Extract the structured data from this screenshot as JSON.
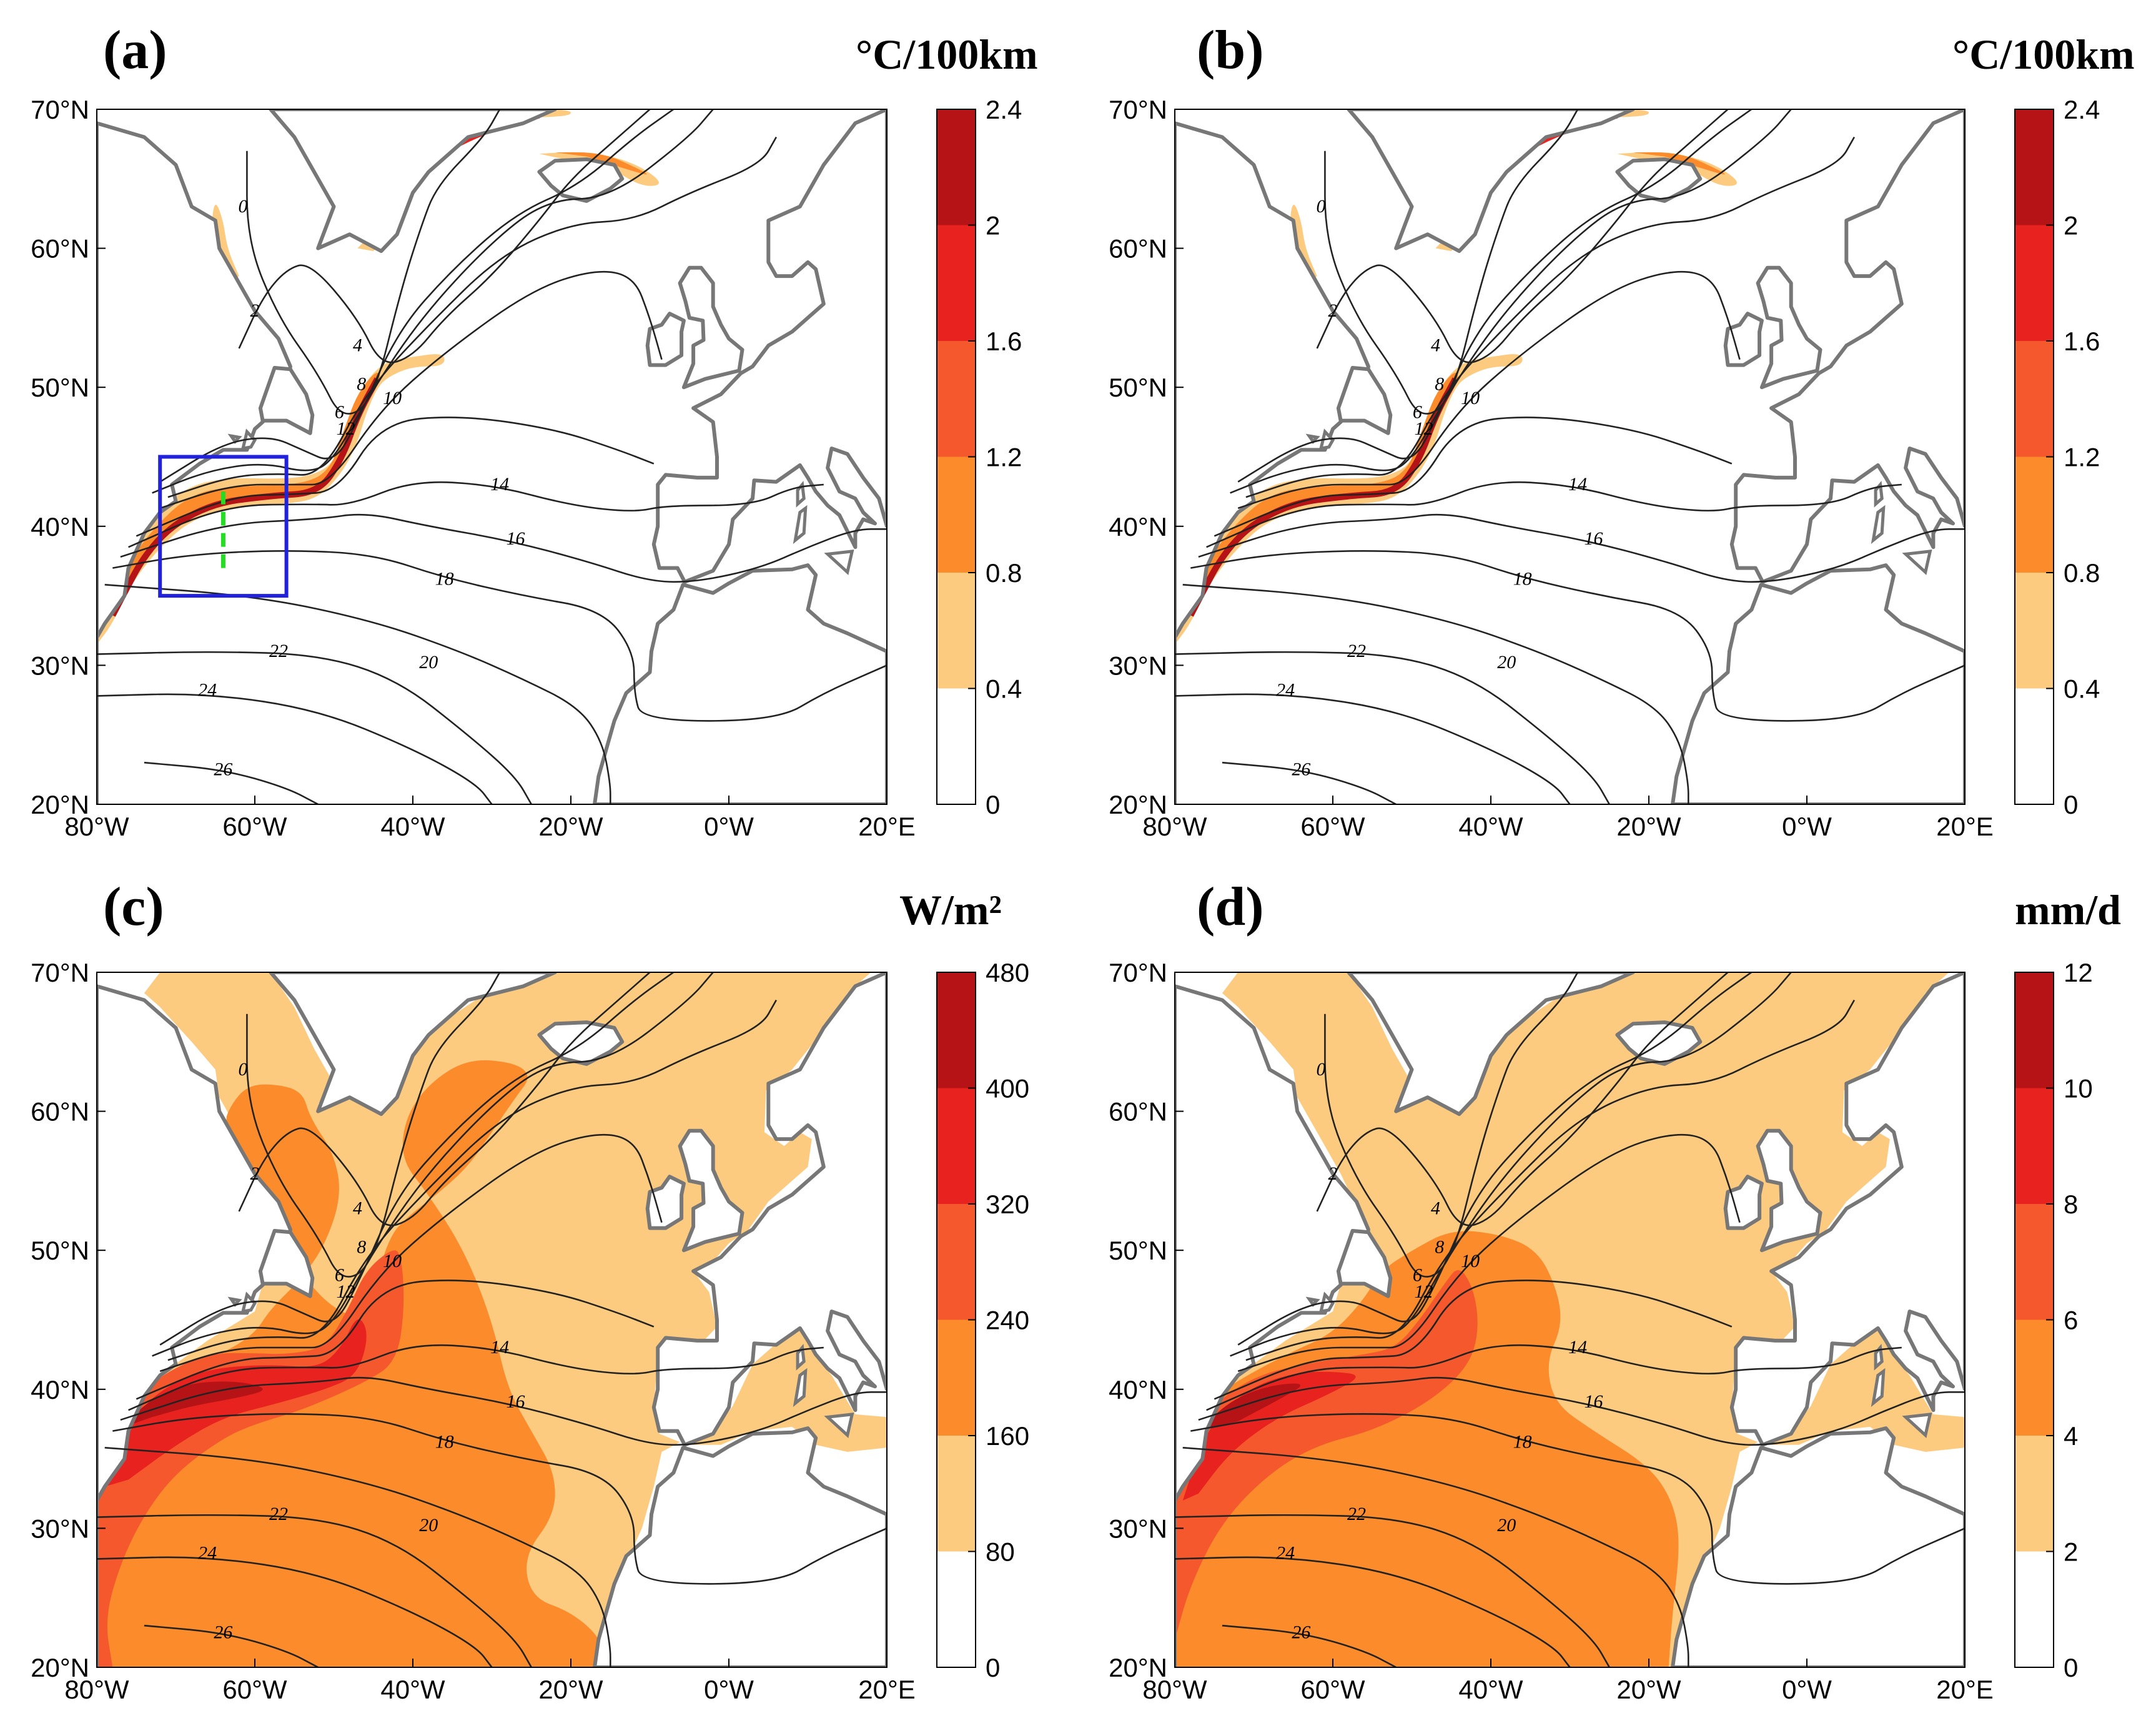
{
  "panels": [
    {
      "label": "(a)",
      "unit": "°C/100km",
      "colorbar": {
        "ticks": [
          "0",
          "0.4",
          "0.8",
          "1.2",
          "1.6",
          "2",
          "2.4"
        ],
        "colors": [
          "#ffffff",
          "#fdcb80",
          "#fb8b2b",
          "#f5582d",
          "#e8231f",
          "#b51316"
        ]
      },
      "field_type": "gradient",
      "contour_labels": [
        "0",
        "2",
        "4",
        "6",
        "8",
        "10",
        "12",
        "14",
        "16",
        "18",
        "20",
        "22",
        "24",
        "26"
      ],
      "region_box": {
        "lon": [
          -72,
          -56
        ],
        "lat": [
          35,
          45
        ],
        "color": "#2222dd"
      },
      "section_line": {
        "lon": -64,
        "lat": [
          37,
          42.5
        ],
        "color": "#22dd22"
      }
    },
    {
      "label": "(b)",
      "unit": "°C/100km",
      "colorbar": {
        "ticks": [
          "0",
          "0.4",
          "0.8",
          "1.2",
          "1.6",
          "2",
          "2.4"
        ],
        "colors": [
          "#ffffff",
          "#fdcb80",
          "#fb8b2b",
          "#f5582d",
          "#e8231f",
          "#b51316"
        ]
      },
      "field_type": "gradient",
      "contour_labels": [
        "0",
        "2",
        "4",
        "6",
        "8",
        "10",
        "12",
        "14",
        "16",
        "18",
        "20",
        "22",
        "24",
        "26"
      ]
    },
    {
      "label": "(c)",
      "unit": "W/m²",
      "colorbar": {
        "ticks": [
          "0",
          "80",
          "160",
          "240",
          "320",
          "400",
          "480"
        ],
        "colors": [
          "#ffffff",
          "#fdcb80",
          "#fb8b2b",
          "#f5582d",
          "#e8231f",
          "#b51316"
        ]
      },
      "field_type": "flux",
      "contour_labels": [
        "0",
        "2",
        "4",
        "6",
        "8",
        "10",
        "12",
        "14",
        "16",
        "18",
        "20",
        "22",
        "24",
        "26"
      ]
    },
    {
      "label": "(d)",
      "unit": "mm/d",
      "colorbar": {
        "ticks": [
          "0",
          "2",
          "4",
          "6",
          "8",
          "10",
          "12"
        ],
        "colors": [
          "#ffffff",
          "#fdcb80",
          "#fb8b2b",
          "#f5582d",
          "#e8231f",
          "#b51316"
        ]
      },
      "field_type": "evap",
      "contour_labels": [
        "0",
        "2",
        "4",
        "6",
        "8",
        "10",
        "12",
        "14",
        "16",
        "18",
        "20",
        "22",
        "24",
        "26"
      ]
    }
  ],
  "axes": {
    "lon_ticks": [
      "80°W",
      "60°W",
      "40°W",
      "20°W",
      "0°W",
      "20°E"
    ],
    "lat_ticks": [
      "20°N",
      "30°N",
      "40°N",
      "50°N",
      "60°N",
      "70°N"
    ],
    "lon_range": [
      -80,
      20
    ],
    "lat_range": [
      20,
      70
    ]
  },
  "colors": {
    "coast": "#777777",
    "contour": "#222222"
  }
}
